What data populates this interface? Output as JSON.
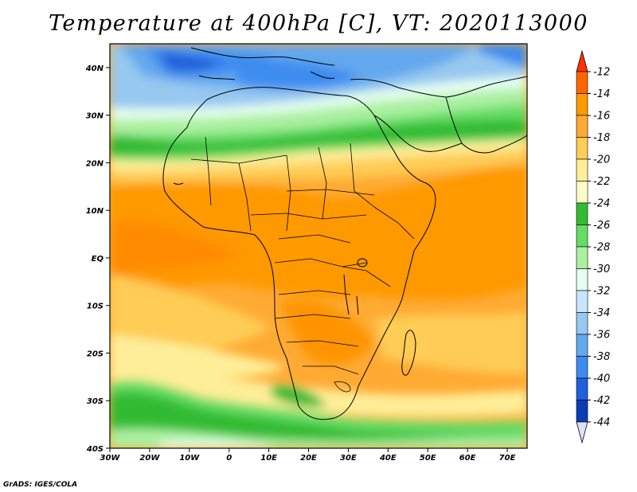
{
  "title": "Temperature at 400hPa [C], VT: 2020113000",
  "credit": "GrADS: IGES/COLA",
  "map": {
    "lon_range": [
      -30,
      75
    ],
    "lat_range": [
      -40,
      45
    ],
    "lat_ticks": [
      {
        "value": 40,
        "label": "40N"
      },
      {
        "value": 30,
        "label": "30N"
      },
      {
        "value": 20,
        "label": "20N"
      },
      {
        "value": 10,
        "label": "10N"
      },
      {
        "value": 0,
        "label": "EQ"
      },
      {
        "value": -10,
        "label": "10S"
      },
      {
        "value": -20,
        "label": "20S"
      },
      {
        "value": -30,
        "label": "30S"
      },
      {
        "value": -40,
        "label": "40S"
      }
    ],
    "lon_ticks": [
      {
        "value": -30,
        "label": "30W"
      },
      {
        "value": -20,
        "label": "20W"
      },
      {
        "value": -10,
        "label": "10W"
      },
      {
        "value": 0,
        "label": "0"
      },
      {
        "value": 10,
        "label": "10E"
      },
      {
        "value": 20,
        "label": "20E"
      },
      {
        "value": 30,
        "label": "30E"
      },
      {
        "value": 40,
        "label": "40E"
      },
      {
        "value": 50,
        "label": "50E"
      },
      {
        "value": 60,
        "label": "60E"
      },
      {
        "value": 70,
        "label": "70E"
      }
    ]
  },
  "colorbar": {
    "levels": [
      "-12",
      "-14",
      "-16",
      "-18",
      "-20",
      "-22",
      "-24",
      "-26",
      "-28",
      "-30",
      "-32",
      "-34",
      "-36",
      "-38",
      "-40",
      "-42",
      "-44"
    ],
    "colors": [
      "#ff3300",
      "#ff6600",
      "#ff9900",
      "#ffaa33",
      "#ffcc55",
      "#ffee99",
      "#fffbc8",
      "#33bb33",
      "#66dd66",
      "#aaf0a0",
      "#e6fff0",
      "#c8e6ff",
      "#96c8f0",
      "#64a8ee",
      "#3c8cf0",
      "#2060dc",
      "#0c3cb4",
      "#000064"
    ],
    "top_arrow_color": "#ff3300",
    "bottom_arrow_color": "#e0e0ff"
  }
}
